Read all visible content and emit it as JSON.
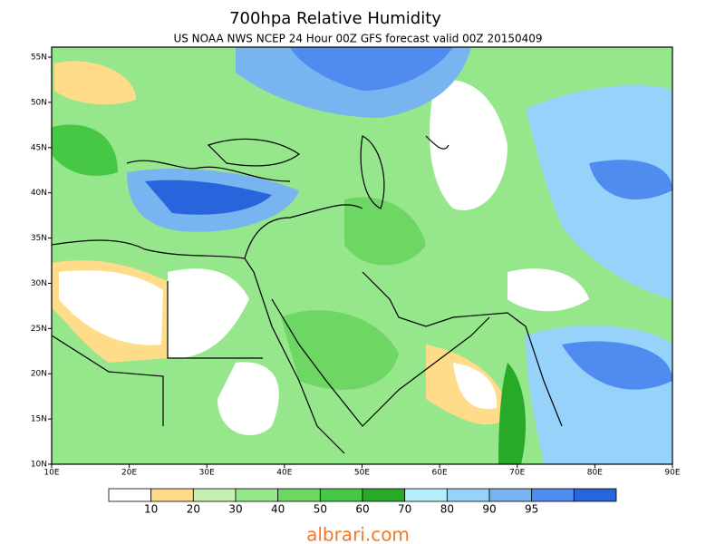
{
  "title": "700hpa Relative Humidity",
  "subtitle": "US NOAA NWS NCEP 24 Hour 00Z GFS forecast valid 00Z 20150409",
  "lat_labels": [
    "55N",
    "50N",
    "45N",
    "40N",
    "35N",
    "30N",
    "25N",
    "20N",
    "15N",
    "10N"
  ],
  "lon_labels": [
    "10E",
    "20E",
    "30E",
    "40E",
    "50E",
    "60E",
    "70E",
    "80E",
    "90E"
  ],
  "colorbar": {
    "colors": [
      "#ffffff",
      "#fedc8a",
      "#c8f0b4",
      "#96e68c",
      "#6ed764",
      "#46c846",
      "#28aa28",
      "#b4f0fa",
      "#96d2fa",
      "#78b4f0",
      "#508cf0",
      "#2864dc"
    ],
    "labels": [
      10,
      20,
      30,
      40,
      50,
      60,
      70,
      80,
      90,
      95
    ]
  },
  "watermark": "albrari.com"
}
